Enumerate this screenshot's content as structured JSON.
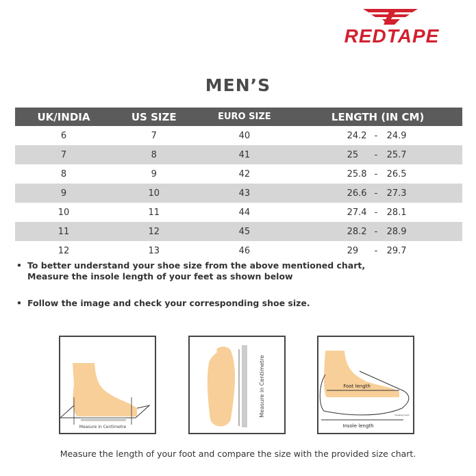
{
  "brand": {
    "name": "REDTAPE",
    "color": "#d2202f"
  },
  "title": "MEN’S",
  "table": {
    "headers": [
      "UK/INDIA",
      "US SIZE",
      "EURO SIZE",
      "LENGTH (IN CM)"
    ],
    "rows": [
      {
        "uk": "6",
        "us": "7",
        "euro": "40",
        "from": "24.2",
        "to": "24.9"
      },
      {
        "uk": "7",
        "us": "8",
        "euro": "41",
        "from": "25",
        "to": "25.7"
      },
      {
        "uk": "8",
        "us": "9",
        "euro": "42",
        "from": "25.8",
        "to": "26.5"
      },
      {
        "uk": "9",
        "us": "10",
        "euro": "43",
        "from": "26.6",
        "to": "27.3"
      },
      {
        "uk": "10",
        "us": "11",
        "euro": "44",
        "from": "27.4",
        "to": "28.1"
      },
      {
        "uk": "11",
        "us": "12",
        "euro": "45",
        "from": "28.2",
        "to": "28.9"
      },
      {
        "uk": "12",
        "us": "13",
        "euro": "46",
        "from": "29",
        "to": "29.7"
      }
    ],
    "separator": "-"
  },
  "bullets": [
    {
      "line1": "To better understand your shoe size from the above mentioned chart,",
      "line2": "Measure the insole length of your feet as shown below"
    },
    {
      "line1": "Follow the image and check your corresponding shoe size."
    }
  ],
  "images": {
    "side_label": "Measure in Centimetre",
    "top_label": "Measure in Centimetre",
    "foot_length": "Foot length",
    "insole_length": "Insole length",
    "growing_room": "Growing room"
  },
  "caption": "Measure the length of your foot and compare the size with the provided size chart."
}
